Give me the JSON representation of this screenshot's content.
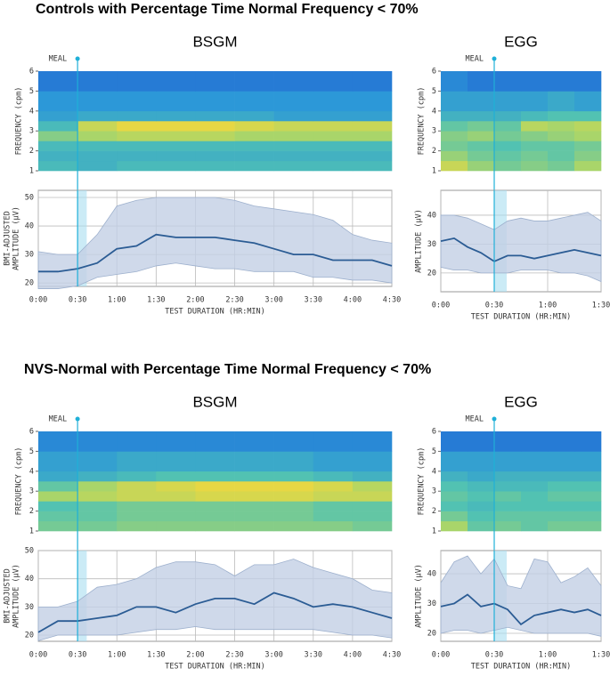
{
  "headings": [
    "Controls with Percentage Time Normal Frequency < 70%",
    "NVS-Normal with Percentage Time Normal Frequency < 70%"
  ],
  "chart_data": [
    {
      "type": "heatmap",
      "title": "BSGM",
      "annotation": {
        "text": "MEAL",
        "x": 30
      },
      "ylabel": [
        "FREQUENCY (cpm)"
      ],
      "xlim": [
        0,
        270
      ],
      "ylim": [
        1,
        6
      ],
      "yticks": [
        1,
        2,
        3,
        4,
        5,
        6
      ],
      "colorscale": [
        "#1d4fd0",
        "#2c98d8",
        "#52c2b2",
        "#a9d56a",
        "#f6d83a"
      ],
      "x_bins": [
        0,
        30,
        60,
        90,
        120,
        150,
        180,
        210,
        240,
        270
      ],
      "y_bins": [
        1,
        1.5,
        2,
        2.5,
        3,
        3.5,
        4,
        5,
        6
      ],
      "z": [
        [
          0.45,
          0.4,
          0.45,
          0.45,
          0.45,
          0.45,
          0.45,
          0.45,
          0.45
        ],
        [
          0.4,
          0.4,
          0.4,
          0.4,
          0.4,
          0.4,
          0.4,
          0.4,
          0.4
        ],
        [
          0.45,
          0.45,
          0.45,
          0.45,
          0.45,
          0.45,
          0.45,
          0.45,
          0.45
        ],
        [
          0.65,
          0.75,
          0.8,
          0.8,
          0.8,
          0.75,
          0.75,
          0.75,
          0.75
        ],
        [
          0.45,
          0.85,
          0.95,
          0.95,
          0.95,
          0.9,
          0.85,
          0.85,
          0.85
        ],
        [
          0.3,
          0.35,
          0.35,
          0.35,
          0.35,
          0.35,
          0.3,
          0.3,
          0.3
        ],
        [
          0.25,
          0.25,
          0.25,
          0.25,
          0.25,
          0.25,
          0.25,
          0.25,
          0.25
        ],
        [
          0.15,
          0.15,
          0.15,
          0.15,
          0.15,
          0.15,
          0.15,
          0.15,
          0.15
        ]
      ]
    },
    {
      "type": "line",
      "ylabel": [
        "BMI-ADJUSTED",
        "AMPLITUDE (µV)"
      ],
      "xlabel": "TEST DURATION (HR:MIN)",
      "meal_span": [
        30,
        37
      ],
      "xlim": [
        0,
        270
      ],
      "ylim": [
        18.8,
        52.5
      ],
      "yticks": [
        20,
        30,
        40,
        50
      ],
      "xticks": [
        {
          "value": 0,
          "label": "0:00"
        },
        {
          "value": 30,
          "label": "0:30"
        },
        {
          "value": 60,
          "label": "1:00"
        },
        {
          "value": 90,
          "label": "1:30"
        },
        {
          "value": 120,
          "label": "2:00"
        },
        {
          "value": 150,
          "label": "2:30"
        },
        {
          "value": 180,
          "label": "3:00"
        },
        {
          "value": 210,
          "label": "3:30"
        },
        {
          "value": 240,
          "label": "4:00"
        },
        {
          "value": 270,
          "label": "4:30"
        }
      ],
      "x": [
        0,
        15,
        30,
        45,
        60,
        75,
        90,
        105,
        120,
        135,
        150,
        165,
        180,
        195,
        210,
        225,
        240,
        255,
        270
      ],
      "mean": [
        24,
        24,
        25,
        27,
        32,
        33,
        37,
        36,
        36,
        36,
        35,
        34,
        32,
        30,
        30,
        28,
        28,
        28,
        26
      ],
      "lower": [
        18,
        18,
        19,
        22,
        23,
        24,
        26,
        27,
        26,
        25,
        25,
        24,
        24,
        24,
        22,
        22,
        21,
        21,
        20
      ],
      "upper": [
        31,
        30,
        30,
        37,
        47,
        49,
        50,
        50,
        50,
        50,
        49,
        47,
        46,
        45,
        44,
        42,
        37,
        35,
        34
      ]
    },
    {
      "type": "heatmap",
      "title": "EGG",
      "annotation": {
        "text": "MEAL",
        "x": 30
      },
      "ylabel": [
        "FREQUENCY (cpm)"
      ],
      "xlim": [
        0,
        90
      ],
      "ylim": [
        1,
        6
      ],
      "yticks": [
        1,
        2,
        3,
        4,
        5,
        6
      ],
      "colorscale": [
        "#1d4fd0",
        "#2c98d8",
        "#52c2b2",
        "#a9d56a",
        "#f6d83a"
      ],
      "x_bins": [
        0,
        15,
        30,
        45,
        60,
        75,
        90
      ],
      "y_bins": [
        1,
        1.5,
        2,
        2.5,
        3,
        3.5,
        4,
        5,
        6
      ],
      "z": [
        [
          0.85,
          0.7,
          0.6,
          0.65,
          0.6,
          0.75
        ],
        [
          0.7,
          0.6,
          0.55,
          0.6,
          0.55,
          0.65
        ],
        [
          0.6,
          0.55,
          0.5,
          0.55,
          0.55,
          0.6
        ],
        [
          0.65,
          0.7,
          0.6,
          0.65,
          0.7,
          0.75
        ],
        [
          0.55,
          0.6,
          0.55,
          0.8,
          0.75,
          0.8
        ],
        [
          0.4,
          0.4,
          0.4,
          0.45,
          0.5,
          0.5
        ],
        [
          0.3,
          0.3,
          0.3,
          0.3,
          0.35,
          0.3
        ],
        [
          0.2,
          0.15,
          0.15,
          0.15,
          0.15,
          0.15
        ]
      ]
    },
    {
      "type": "line",
      "ylabel": [
        "AMPLITUDE (µV)"
      ],
      "xlabel": "TEST DURATION (HR:MIN)",
      "meal_span": [
        30,
        37
      ],
      "xlim": [
        0,
        90
      ],
      "ylim": [
        13.5,
        48.6
      ],
      "yticks": [
        20,
        30,
        40
      ],
      "xticks": [
        {
          "value": 0,
          "label": "0:00"
        },
        {
          "value": 30,
          "label": "0:30"
        },
        {
          "value": 60,
          "label": "1:00"
        },
        {
          "value": 90,
          "label": "1:30"
        }
      ],
      "x": [
        0,
        7.5,
        15,
        22.5,
        30,
        37.5,
        45,
        52.5,
        60,
        67.5,
        75,
        82.5,
        90
      ],
      "mean": [
        31,
        32,
        29,
        27,
        24,
        26,
        26,
        25,
        26,
        27,
        28,
        27,
        26
      ],
      "lower": [
        22,
        21,
        21,
        20,
        20,
        20,
        21,
        21,
        21,
        20,
        20,
        19,
        17
      ],
      "upper": [
        40,
        40,
        39,
        37,
        35,
        38,
        39,
        38,
        38,
        39,
        40,
        41,
        38
      ]
    },
    {
      "type": "heatmap",
      "title": "BSGM",
      "annotation": {
        "text": "MEAL",
        "x": 30
      },
      "ylabel": [
        "FREQUENCY (cpm)"
      ],
      "xlim": [
        0,
        270
      ],
      "ylim": [
        1,
        6
      ],
      "yticks": [
        1,
        2,
        3,
        4,
        5,
        6
      ],
      "colorscale": [
        "#1d4fd0",
        "#2c98d8",
        "#52c2b2",
        "#a9d56a",
        "#f6d83a"
      ],
      "x_bins": [
        0,
        30,
        60,
        90,
        120,
        150,
        180,
        210,
        240,
        270
      ],
      "y_bins": [
        1,
        1.5,
        2,
        2.5,
        3,
        3.5,
        4,
        5,
        6
      ],
      "z": [
        [
          0.6,
          0.6,
          0.65,
          0.65,
          0.65,
          0.65,
          0.65,
          0.65,
          0.6
        ],
        [
          0.55,
          0.55,
          0.6,
          0.6,
          0.6,
          0.6,
          0.6,
          0.55,
          0.55
        ],
        [
          0.5,
          0.55,
          0.6,
          0.6,
          0.6,
          0.6,
          0.6,
          0.55,
          0.55
        ],
        [
          0.75,
          0.8,
          0.85,
          0.85,
          0.9,
          0.9,
          0.9,
          0.85,
          0.85
        ],
        [
          0.55,
          0.75,
          0.85,
          0.9,
          0.95,
          0.95,
          0.95,
          0.9,
          0.8
        ],
        [
          0.35,
          0.4,
          0.45,
          0.5,
          0.5,
          0.5,
          0.5,
          0.45,
          0.4
        ],
        [
          0.3,
          0.3,
          0.35,
          0.35,
          0.35,
          0.35,
          0.35,
          0.3,
          0.3
        ],
        [
          0.2,
          0.2,
          0.2,
          0.2,
          0.2,
          0.2,
          0.2,
          0.2,
          0.2
        ]
      ]
    },
    {
      "type": "line",
      "ylabel": [
        "BMI-ADJUSTED",
        "AMPLITUDE (µV)"
      ],
      "xlabel": "TEST DURATION (HR:MIN)",
      "meal_span": [
        30,
        37
      ],
      "xlim": [
        0,
        270
      ],
      "ylim": [
        17.8,
        50
      ],
      "yticks": [
        20,
        30,
        40,
        50
      ],
      "xticks": [
        {
          "value": 0,
          "label": "0:00"
        },
        {
          "value": 30,
          "label": "0:30"
        },
        {
          "value": 60,
          "label": "1:00"
        },
        {
          "value": 90,
          "label": "1:30"
        },
        {
          "value": 120,
          "label": "2:00"
        },
        {
          "value": 150,
          "label": "2:30"
        },
        {
          "value": 180,
          "label": "3:00"
        },
        {
          "value": 210,
          "label": "3:30"
        },
        {
          "value": 240,
          "label": "4:00"
        },
        {
          "value": 270,
          "label": "4:30"
        }
      ],
      "x": [
        0,
        15,
        30,
        45,
        60,
        75,
        90,
        105,
        120,
        135,
        150,
        165,
        180,
        195,
        210,
        225,
        240,
        255,
        270
      ],
      "mean": [
        21,
        25,
        25,
        26,
        27,
        30,
        30,
        28,
        31,
        33,
        33,
        31,
        35,
        33,
        30,
        31,
        30,
        28,
        26
      ],
      "lower": [
        18,
        20,
        20,
        20,
        20,
        21,
        22,
        22,
        23,
        22,
        22,
        22,
        22,
        22,
        22,
        21,
        20,
        20,
        19
      ],
      "upper": [
        30,
        30,
        32,
        37,
        38,
        40,
        44,
        46,
        46,
        45,
        41,
        45,
        45,
        47,
        44,
        42,
        40,
        36,
        35
      ]
    },
    {
      "type": "heatmap",
      "title": "EGG",
      "annotation": {
        "text": "MEAL",
        "x": 30
      },
      "ylabel": [
        "FREQUENCY (cpm)"
      ],
      "xlim": [
        0,
        90
      ],
      "ylim": [
        1,
        6
      ],
      "yticks": [
        1,
        2,
        3,
        4,
        5,
        6
      ],
      "colorscale": [
        "#1d4fd0",
        "#2c98d8",
        "#52c2b2",
        "#a9d56a",
        "#f6d83a"
      ],
      "x_bins": [
        0,
        15,
        30,
        45,
        60,
        75,
        90
      ],
      "y_bins": [
        1,
        1.5,
        2,
        2.5,
        3,
        3.5,
        4,
        5,
        6
      ],
      "z": [
        [
          0.75,
          0.55,
          0.6,
          0.55,
          0.6,
          0.6
        ],
        [
          0.6,
          0.5,
          0.55,
          0.55,
          0.55,
          0.55
        ],
        [
          0.5,
          0.45,
          0.5,
          0.5,
          0.5,
          0.5
        ],
        [
          0.55,
          0.5,
          0.55,
          0.5,
          0.55,
          0.55
        ],
        [
          0.5,
          0.45,
          0.45,
          0.45,
          0.5,
          0.5
        ],
        [
          0.4,
          0.35,
          0.4,
          0.4,
          0.4,
          0.4
        ],
        [
          0.3,
          0.3,
          0.3,
          0.3,
          0.3,
          0.3
        ],
        [
          0.15,
          0.15,
          0.15,
          0.15,
          0.15,
          0.15
        ]
      ]
    },
    {
      "type": "line",
      "ylabel": [
        "AMPLITUDE (µV)"
      ],
      "xlabel": "TEST DURATION (HR:MIN)",
      "meal_span": [
        30,
        37
      ],
      "xlim": [
        0,
        90
      ],
      "ylim": [
        17.3,
        47.8
      ],
      "yticks": [
        20,
        30,
        40
      ],
      "xticks": [
        {
          "value": 0,
          "label": "0:00"
        },
        {
          "value": 30,
          "label": "0:30"
        },
        {
          "value": 60,
          "label": "1:00"
        },
        {
          "value": 90,
          "label": "1:30"
        }
      ],
      "x": [
        0,
        7.5,
        15,
        22.5,
        30,
        37.5,
        45,
        52.5,
        60,
        67.5,
        75,
        82.5,
        90
      ],
      "mean": [
        29,
        30,
        33,
        29,
        30,
        28,
        23,
        26,
        27,
        28,
        27,
        28,
        26
      ],
      "lower": [
        20,
        21,
        21,
        20,
        21,
        22,
        21,
        20,
        20,
        20,
        20,
        20,
        19
      ],
      "upper": [
        37,
        44,
        46,
        40,
        45,
        36,
        35,
        45,
        44,
        37,
        39,
        42,
        36
      ]
    }
  ]
}
